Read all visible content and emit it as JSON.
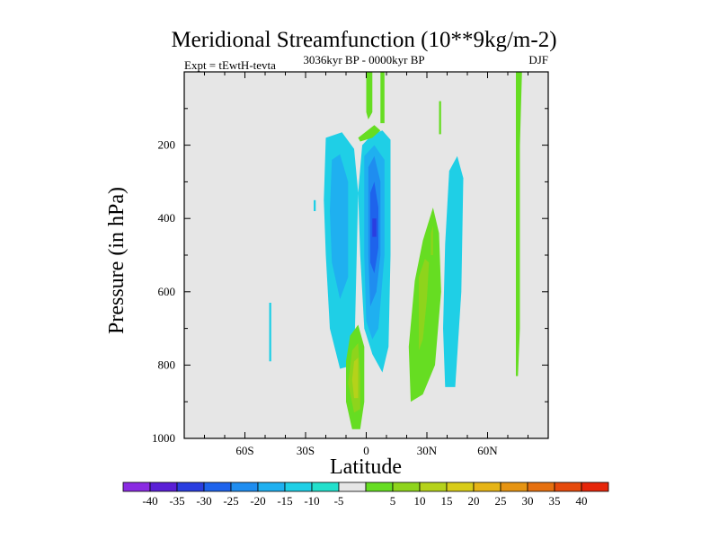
{
  "chart_data": {
    "type": "contour",
    "title": "Meridional Streamfunction (10**9kg/m-2)",
    "left_string": "Expt = tEwtH-tevta",
    "center_string": "3036kyr BP - 0000kyr BP",
    "right_string": "DJF",
    "xlabel": "Latitude",
    "ylabel": "Pressure (in hPa)",
    "xlim": [
      -90,
      90
    ],
    "ylim": [
      1000,
      0
    ],
    "x_ticks": [
      {
        "value": -60,
        "label": "60S"
      },
      {
        "value": -30,
        "label": "30S"
      },
      {
        "value": 0,
        "label": "0"
      },
      {
        "value": 30,
        "label": "30N"
      },
      {
        "value": 60,
        "label": "60N"
      }
    ],
    "y_ticks": [
      {
        "value": 200,
        "label": "200"
      },
      {
        "value": 400,
        "label": "400"
      },
      {
        "value": 600,
        "label": "600"
      },
      {
        "value": 800,
        "label": "800"
      },
      {
        "value": 1000,
        "label": "1000"
      }
    ],
    "background_color": "#e6e6e6",
    "levels": [
      {
        "label": "-40",
        "color": "#8a2be2"
      },
      {
        "label": "-35",
        "color": "#5a1fd6"
      },
      {
        "label": "-30",
        "color": "#2a3ee0"
      },
      {
        "label": "-25",
        "color": "#1e63ec"
      },
      {
        "label": "-20",
        "color": "#1f8df0"
      },
      {
        "label": "-15",
        "color": "#1fb0f0"
      },
      {
        "label": "-10",
        "color": "#1fcfe6"
      },
      {
        "label": "-5",
        "color": "#22e0cc"
      },
      {
        "label": "",
        "color": "#e6e6e6"
      },
      {
        "label": "5",
        "color": "#66dd22"
      },
      {
        "label": "10",
        "color": "#8ed41c"
      },
      {
        "label": "15",
        "color": "#b5d21a"
      },
      {
        "label": "20",
        "color": "#d8cc18"
      },
      {
        "label": "25",
        "color": "#e6b416"
      },
      {
        "label": "30",
        "color": "#e69412"
      },
      {
        "label": "35",
        "color": "#e6700f"
      },
      {
        "label": "40",
        "color": "#e64a0c"
      },
      {
        "label": "",
        "color": "#e6260a"
      }
    ],
    "regions": [
      {
        "name": "sh-cell-outer",
        "color": "#1fcfe6",
        "points": [
          [
            -20,
            180
          ],
          [
            -12,
            165
          ],
          [
            -6,
            210
          ],
          [
            -4,
            330
          ],
          [
            -6,
            800
          ],
          [
            -13,
            810
          ],
          [
            -18,
            700
          ],
          [
            -20,
            500
          ],
          [
            -21,
            350
          ]
        ]
      },
      {
        "name": "sh-cell-inner",
        "color": "#1fb0f0",
        "points": [
          [
            -17,
            240
          ],
          [
            -13,
            225
          ],
          [
            -9,
            300
          ],
          [
            -9,
            560
          ],
          [
            -13,
            620
          ],
          [
            -17,
            520
          ],
          [
            -18,
            380
          ]
        ]
      },
      {
        "name": "sh-stripe-1",
        "color": "#1fcfe6",
        "points": [
          [
            -48,
            630
          ],
          [
            -47,
            630
          ],
          [
            -47,
            790
          ],
          [
            -48,
            790
          ]
        ]
      },
      {
        "name": "sh-stripe-2",
        "color": "#1fcfe6",
        "points": [
          [
            -26,
            350
          ],
          [
            -25,
            350
          ],
          [
            -25,
            380
          ],
          [
            -26,
            380
          ]
        ]
      },
      {
        "name": "eq-cell-outer",
        "color": "#1fcfe6",
        "points": [
          [
            -2,
            200
          ],
          [
            3,
            170
          ],
          [
            8,
            160
          ],
          [
            12,
            185
          ],
          [
            12,
            500
          ],
          [
            11,
            750
          ],
          [
            8,
            820
          ],
          [
            3,
            770
          ],
          [
            -1,
            700
          ],
          [
            -3,
            500
          ],
          [
            -4,
            330
          ]
        ]
      },
      {
        "name": "eq-cell-mid",
        "color": "#1fb0f0",
        "points": [
          [
            -1,
            230
          ],
          [
            4,
            200
          ],
          [
            9,
            240
          ],
          [
            9,
            500
          ],
          [
            6,
            700
          ],
          [
            3,
            730
          ],
          [
            0,
            680
          ],
          [
            -1,
            500
          ]
        ]
      },
      {
        "name": "eq-cell-inner",
        "color": "#1f8df0",
        "points": [
          [
            1,
            260
          ],
          [
            4,
            230
          ],
          [
            7,
            300
          ],
          [
            7,
            500
          ],
          [
            5,
            600
          ],
          [
            2,
            640
          ],
          [
            1,
            500
          ]
        ]
      },
      {
        "name": "eq-cell-core",
        "color": "#1e63ec",
        "points": [
          [
            2,
            330
          ],
          [
            4,
            300
          ],
          [
            6,
            370
          ],
          [
            6,
            480
          ],
          [
            4,
            550
          ],
          [
            2,
            520
          ]
        ]
      },
      {
        "name": "eq-cell-peak",
        "color": "#2a3ee0",
        "points": [
          [
            3,
            400
          ],
          [
            5,
            400
          ],
          [
            5,
            450
          ],
          [
            3,
            450
          ]
        ]
      },
      {
        "name": "nh-cell-outer",
        "color": "#1fcfe6",
        "points": [
          [
            41,
            270
          ],
          [
            45,
            230
          ],
          [
            48,
            290
          ],
          [
            47,
            600
          ],
          [
            44,
            860
          ],
          [
            39,
            860
          ],
          [
            38,
            700
          ],
          [
            39,
            470
          ]
        ]
      },
      {
        "name": "upper-green-1",
        "color": "#66dd22",
        "points": [
          [
            0,
            0
          ],
          [
            3,
            0
          ],
          [
            3,
            110
          ],
          [
            1,
            130
          ],
          [
            0,
            110
          ]
        ]
      },
      {
        "name": "upper-green-2",
        "color": "#66dd22",
        "points": [
          [
            7,
            0
          ],
          [
            9,
            0
          ],
          [
            9,
            140
          ],
          [
            7,
            140
          ]
        ]
      },
      {
        "name": "upper-green-3",
        "color": "#66dd22",
        "points": [
          [
            -4,
            180
          ],
          [
            4,
            145
          ],
          [
            7,
            160
          ],
          [
            3,
            180
          ],
          [
            -3,
            190
          ]
        ]
      },
      {
        "name": "upper-green-4",
        "color": "#66dd22",
        "points": [
          [
            36,
            80
          ],
          [
            37,
            80
          ],
          [
            37,
            170
          ],
          [
            36,
            170
          ]
        ]
      },
      {
        "name": "sh-pos-outer",
        "color": "#66dd22",
        "points": [
          [
            -8,
            720
          ],
          [
            -4,
            690
          ],
          [
            -1,
            750
          ],
          [
            -1,
            900
          ],
          [
            -3,
            975
          ],
          [
            -7,
            975
          ],
          [
            -10,
            900
          ],
          [
            -10,
            790
          ]
        ]
      },
      {
        "name": "sh-pos-mid",
        "color": "#8ed41c",
        "points": [
          [
            -7,
            760
          ],
          [
            -4,
            740
          ],
          [
            -3,
            830
          ],
          [
            -3,
            920
          ],
          [
            -6,
            930
          ],
          [
            -9,
            850
          ]
        ]
      },
      {
        "name": "sh-pos-core",
        "color": "#b5d21a",
        "points": [
          [
            -6,
            790
          ],
          [
            -4,
            780
          ],
          [
            -4,
            890
          ],
          [
            -6,
            890
          ],
          [
            -7,
            840
          ]
        ]
      },
      {
        "name": "nh-pos-outer",
        "color": "#66dd22",
        "points": [
          [
            24,
            570
          ],
          [
            28,
            460
          ],
          [
            33,
            370
          ],
          [
            36,
            440
          ],
          [
            37,
            600
          ],
          [
            34,
            800
          ],
          [
            28,
            880
          ],
          [
            22,
            900
          ],
          [
            21,
            750
          ]
        ]
      },
      {
        "name": "nh-pos-inner",
        "color": "#8ed41c",
        "points": [
          [
            26,
            560
          ],
          [
            29,
            510
          ],
          [
            31,
            520
          ],
          [
            30,
            620
          ],
          [
            28,
            730
          ],
          [
            26,
            760
          ]
        ]
      },
      {
        "name": "nh-pos-stripe",
        "color": "#8ed41c",
        "points": [
          [
            32,
            440
          ],
          [
            33,
            420
          ],
          [
            33,
            500
          ],
          [
            32,
            500
          ]
        ]
      },
      {
        "name": "polar-green",
        "color": "#66dd22",
        "points": [
          [
            74,
            0
          ],
          [
            77,
            0
          ],
          [
            76,
            200
          ],
          [
            76,
            700
          ],
          [
            75,
            830
          ],
          [
            74,
            830
          ]
        ]
      }
    ]
  }
}
